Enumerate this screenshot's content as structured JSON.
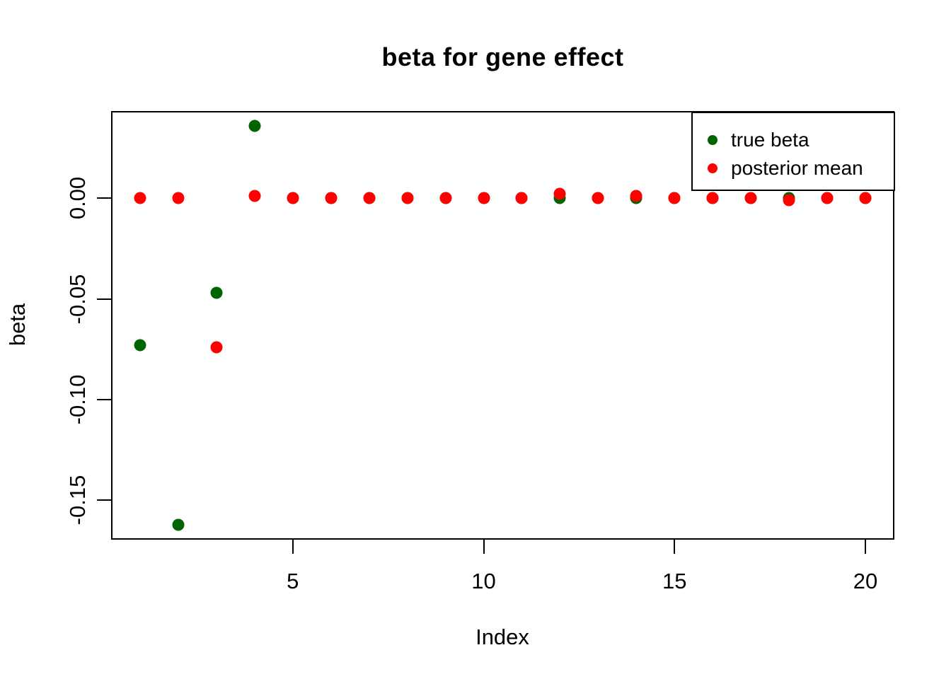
{
  "title": "beta for gene effect",
  "axes": {
    "xlabel": "Index",
    "ylabel": "beta",
    "x_ticks": [
      {
        "value": 5,
        "label": "5"
      },
      {
        "value": 10,
        "label": "10"
      },
      {
        "value": 15,
        "label": "15"
      },
      {
        "value": 20,
        "label": "20"
      }
    ],
    "y_ticks": [
      {
        "value": 0,
        "label": "0.00"
      },
      {
        "value": -0.05,
        "label": "-0.05"
      },
      {
        "value": -0.1,
        "label": "-0.10"
      },
      {
        "value": -0.15,
        "label": "-0.15"
      }
    ]
  },
  "legend": {
    "items": [
      {
        "label": "true beta",
        "color": "#006400"
      },
      {
        "label": "posterior mean",
        "color": "#ff0000"
      }
    ]
  },
  "colors": {
    "true_beta": "#006400",
    "posterior_mean": "#ff0000",
    "frame": "#000000",
    "background": "#ffffff"
  },
  "chart_data": {
    "type": "scatter",
    "title": "beta for gene effect",
    "xlabel": "Index",
    "ylabel": "beta",
    "xlim": [
      0.24,
      20.76
    ],
    "ylim": [
      -0.1695,
      0.0432
    ],
    "grid": false,
    "legend_position": "topright",
    "x": [
      1,
      2,
      3,
      4,
      5,
      6,
      7,
      8,
      9,
      10,
      11,
      12,
      13,
      14,
      15,
      16,
      17,
      18,
      19,
      20
    ],
    "series": [
      {
        "name": "true beta",
        "color": "#006400",
        "marker": "filled-circle",
        "values": [
          -0.073,
          -0.162,
          -0.047,
          0.036,
          0,
          0,
          0,
          0,
          0,
          0,
          0,
          0,
          0,
          0,
          0,
          0,
          0,
          0,
          0,
          0
        ]
      },
      {
        "name": "posterior mean",
        "color": "#ff0000",
        "marker": "filled-circle",
        "values": [
          0,
          0,
          -0.074,
          0.001,
          0,
          0,
          0,
          0,
          0,
          0,
          0,
          0.002,
          0,
          0.001,
          0,
          0,
          0,
          -0.001,
          0,
          0
        ]
      }
    ]
  }
}
